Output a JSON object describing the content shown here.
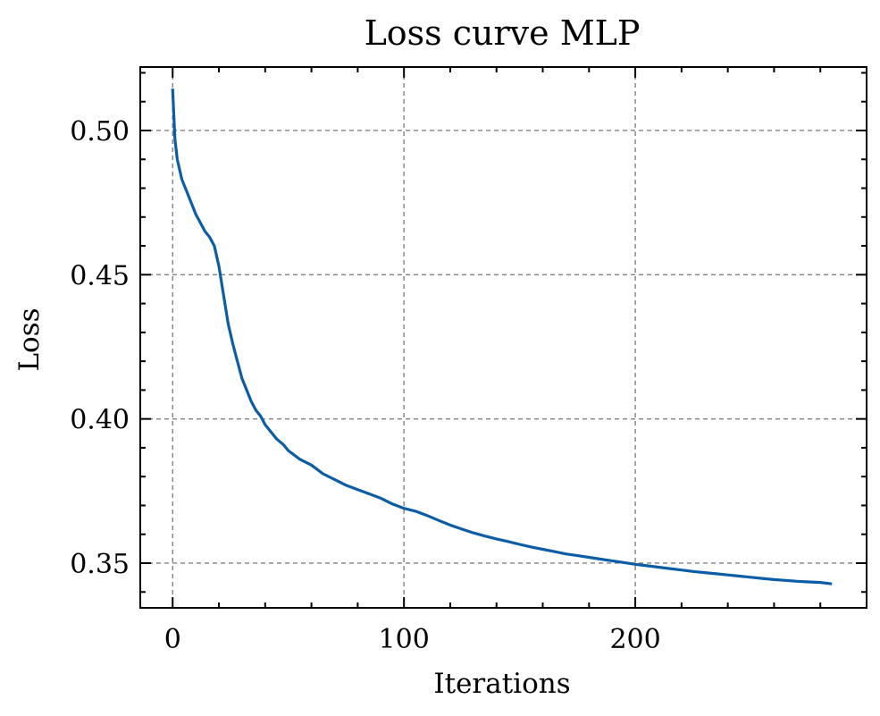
{
  "chart_data": {
    "type": "line",
    "title": "Loss curve MLP",
    "xlabel": "Iterations",
    "ylabel": "Loss",
    "xlim": [
      -14,
      300
    ],
    "ylim": [
      0.3345,
      0.522
    ],
    "x_ticks": [
      0,
      100,
      200
    ],
    "x_tick_labels": [
      "0",
      "100",
      "200"
    ],
    "x_minor_step": 20,
    "y_ticks": [
      0.35,
      0.4,
      0.45,
      0.5
    ],
    "y_tick_labels": [
      "0.35",
      "0.40",
      "0.45",
      "0.50"
    ],
    "y_minor_step": 0.01,
    "grid": true,
    "line_color": "#0c5da5",
    "series": [
      {
        "x": [
          0,
          1,
          2,
          4,
          6,
          8,
          10,
          12,
          14,
          16,
          18,
          20,
          22,
          24,
          26,
          28,
          30,
          32,
          34,
          36,
          38,
          40,
          42,
          45,
          48,
          50,
          55,
          60,
          65,
          70,
          75,
          80,
          85,
          90,
          95,
          100,
          105,
          110,
          115,
          120,
          125,
          130,
          135,
          140,
          145,
          150,
          155,
          160,
          165,
          170,
          175,
          180,
          185,
          190,
          195,
          200,
          205,
          210,
          215,
          220,
          225,
          230,
          235,
          240,
          245,
          250,
          255,
          260,
          265,
          270,
          275,
          280,
          285
        ],
        "values": [
          0.5145,
          0.497,
          0.49,
          0.483,
          0.479,
          0.475,
          0.471,
          0.468,
          0.465,
          0.463,
          0.46,
          0.453,
          0.443,
          0.433,
          0.426,
          0.42,
          0.414,
          0.41,
          0.406,
          0.403,
          0.401,
          0.398,
          0.396,
          0.393,
          0.391,
          0.389,
          0.386,
          0.384,
          0.381,
          0.379,
          0.377,
          0.3755,
          0.374,
          0.3725,
          0.3705,
          0.369,
          0.368,
          0.3665,
          0.3648,
          0.3632,
          0.3618,
          0.3605,
          0.3594,
          0.3584,
          0.3575,
          0.3565,
          0.3556,
          0.3548,
          0.354,
          0.3532,
          0.3526,
          0.352,
          0.3514,
          0.3508,
          0.3502,
          0.3496,
          0.3491,
          0.3486,
          0.3481,
          0.3476,
          0.3471,
          0.3467,
          0.3463,
          0.3459,
          0.3455,
          0.3451,
          0.3447,
          0.3443,
          0.344,
          0.3437,
          0.3435,
          0.3433,
          0.3428
        ]
      }
    ]
  }
}
